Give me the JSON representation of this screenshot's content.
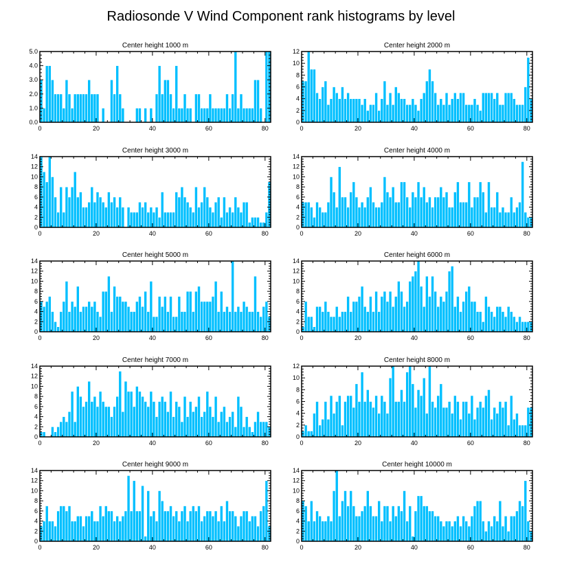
{
  "title": "Radiosonde V Wind Component rank histograms by level",
  "bar_color": "#00bfff",
  "chart_data": [
    {
      "type": "bar",
      "title": "Center height 1000 m",
      "xlim": [
        0,
        82
      ],
      "ylim": [
        0,
        5
      ],
      "xticks": [
        "0",
        "20",
        "40",
        "60",
        "80"
      ],
      "yticks": [
        "0.0",
        "1.0",
        "2.0",
        "3.0",
        "4.0",
        "5.0"
      ],
      "values": [
        3,
        1,
        4,
        4,
        3,
        2,
        2,
        2,
        1,
        3,
        2,
        1,
        2,
        2,
        2,
        2,
        2,
        3,
        2,
        2,
        2,
        0,
        1,
        0,
        0,
        3,
        2,
        4,
        2,
        1,
        0,
        0,
        0,
        0,
        1,
        1,
        0,
        1,
        0,
        1,
        0,
        2,
        4,
        2,
        3,
        3,
        2,
        1,
        4,
        1,
        1,
        2,
        1,
        1,
        0,
        2,
        2,
        1,
        1,
        1,
        2,
        1,
        1,
        1,
        1,
        1,
        2,
        1,
        2,
        5,
        1,
        2,
        1,
        1,
        1,
        1,
        3,
        3,
        1,
        0,
        5,
        5
      ]
    },
    {
      "type": "bar",
      "title": "Center height 2000 m",
      "xlim": [
        0,
        82
      ],
      "ylim": [
        0,
        12
      ],
      "xticks": [
        "0",
        "20",
        "40",
        "60",
        "80"
      ],
      "yticks": [
        "0",
        "2",
        "4",
        "6",
        "8",
        "10",
        "12"
      ],
      "values": [
        7,
        7,
        12,
        9,
        9,
        5,
        4,
        6,
        7,
        3,
        4,
        6,
        5,
        4,
        6,
        4,
        5,
        4,
        4,
        4,
        4,
        3,
        4,
        2,
        3,
        3,
        5,
        2,
        4,
        7,
        3,
        5,
        3,
        6,
        5,
        4,
        4,
        3,
        3,
        4,
        3,
        2,
        4,
        5,
        7,
        9,
        7,
        5,
        3,
        4,
        3,
        5,
        3,
        4,
        5,
        4,
        5,
        5,
        3,
        3,
        3,
        4,
        3,
        2,
        5,
        5,
        5,
        5,
        4,
        5,
        3,
        3,
        5,
        5,
        5,
        4,
        3,
        3,
        3,
        6,
        11,
        4
      ]
    },
    {
      "type": "bar",
      "title": "Center height 3000 m",
      "xlim": [
        0,
        82
      ],
      "ylim": [
        0,
        14
      ],
      "xticks": [
        "0",
        "20",
        "40",
        "60",
        "80"
      ],
      "yticks": [
        "0",
        "2",
        "4",
        "6",
        "8",
        "10",
        "12",
        "14"
      ],
      "values": [
        14,
        11,
        9,
        14,
        10,
        6,
        3,
        8,
        3,
        8,
        6,
        8,
        11,
        6,
        7,
        4,
        4,
        5,
        8,
        5,
        7,
        6,
        5,
        4,
        7,
        5,
        6,
        4,
        6,
        4,
        0,
        4,
        3,
        3,
        3,
        5,
        4,
        5,
        3,
        4,
        3,
        4,
        2,
        7,
        3,
        3,
        3,
        3,
        7,
        6,
        8,
        6,
        5,
        4,
        3,
        8,
        4,
        5,
        8,
        6,
        4,
        3,
        5,
        6,
        2,
        6,
        3,
        4,
        3,
        6,
        4,
        3,
        5,
        5,
        1,
        2,
        2,
        2,
        1,
        1,
        3,
        9
      ]
    },
    {
      "type": "bar",
      "title": "Center height 4000 m",
      "xlim": [
        0,
        82
      ],
      "ylim": [
        0,
        14
      ],
      "xticks": [
        "0",
        "20",
        "40",
        "60",
        "80"
      ],
      "yticks": [
        "0",
        "2",
        "4",
        "6",
        "8",
        "10",
        "12",
        "14"
      ],
      "values": [
        5,
        5,
        5,
        4,
        2,
        5,
        4,
        3,
        3,
        5,
        10,
        7,
        4,
        12,
        6,
        6,
        4,
        7,
        9,
        6,
        4,
        5,
        4,
        6,
        8,
        5,
        4,
        4,
        5,
        10,
        7,
        6,
        8,
        5,
        5,
        9,
        9,
        6,
        4,
        7,
        6,
        9,
        6,
        8,
        5,
        6,
        4,
        6,
        6,
        8,
        6,
        7,
        4,
        4,
        7,
        9,
        5,
        5,
        5,
        9,
        4,
        6,
        6,
        9,
        7,
        3,
        9,
        4,
        4,
        7,
        3,
        4,
        3,
        3,
        6,
        3,
        4,
        5,
        13,
        3,
        2,
        2
      ]
    },
    {
      "type": "bar",
      "title": "Center height 5000 m",
      "xlim": [
        0,
        82
      ],
      "ylim": [
        0,
        14
      ],
      "xticks": [
        "0",
        "20",
        "40",
        "60",
        "80"
      ],
      "yticks": [
        "0",
        "2",
        "4",
        "6",
        "8",
        "10",
        "12",
        "14"
      ],
      "values": [
        6,
        5,
        6,
        7,
        4,
        2,
        1,
        4,
        6,
        10,
        4,
        6,
        5,
        9,
        4,
        5,
        5,
        6,
        5,
        6,
        4,
        3,
        8,
        8,
        11,
        4,
        9,
        7,
        7,
        6,
        6,
        5,
        4,
        4,
        6,
        7,
        5,
        8,
        4,
        10,
        3,
        3,
        7,
        5,
        7,
        4,
        7,
        3,
        3,
        7,
        4,
        4,
        8,
        8,
        4,
        8,
        9,
        6,
        6,
        6,
        6,
        7,
        10,
        4,
        8,
        4,
        5,
        4,
        14,
        4,
        5,
        4,
        6,
        5,
        4,
        4,
        11,
        4,
        3,
        5,
        6,
        3
      ]
    },
    {
      "type": "bar",
      "title": "Center height 6000 m",
      "xlim": [
        0,
        82
      ],
      "ylim": [
        0,
        14
      ],
      "xticks": [
        "0",
        "20",
        "40",
        "60",
        "80"
      ],
      "yticks": [
        "0",
        "2",
        "4",
        "6",
        "8",
        "10",
        "12",
        "14"
      ],
      "values": [
        1,
        6,
        3,
        3,
        1,
        5,
        5,
        4,
        6,
        4,
        3,
        3,
        5,
        3,
        4,
        4,
        7,
        4,
        6,
        6,
        7,
        9,
        5,
        4,
        7,
        4,
        8,
        4,
        7,
        8,
        6,
        8,
        5,
        7,
        10,
        8,
        5,
        6,
        10,
        11,
        12,
        14,
        9,
        5,
        11,
        7,
        11,
        8,
        5,
        7,
        6,
        8,
        12,
        13,
        5,
        7,
        4,
        6,
        8,
        9,
        6,
        6,
        4,
        4,
        2,
        7,
        5,
        4,
        3,
        5,
        5,
        4,
        3,
        5,
        4,
        3,
        2,
        3,
        2,
        2,
        2,
        2
      ]
    },
    {
      "type": "bar",
      "title": "Center height 7000 m",
      "xlim": [
        0,
        82
      ],
      "ylim": [
        0,
        14
      ],
      "xticks": [
        "0",
        "20",
        "40",
        "60",
        "80"
      ],
      "yticks": [
        "0",
        "2",
        "4",
        "6",
        "8",
        "10",
        "12",
        "14"
      ],
      "values": [
        1,
        1,
        0,
        0,
        2,
        1,
        2,
        3,
        4,
        3,
        5,
        9,
        3,
        10,
        8,
        6,
        7,
        11,
        7,
        8,
        6,
        9,
        7,
        6,
        6,
        4,
        6,
        8,
        13,
        5,
        11,
        9,
        9,
        6,
        10,
        9,
        8,
        7,
        6,
        9,
        7,
        4,
        7,
        8,
        7,
        5,
        9,
        4,
        7,
        6,
        3,
        8,
        4,
        7,
        5,
        6,
        8,
        4,
        5,
        9,
        6,
        4,
        8,
        3,
        5,
        6,
        3,
        4,
        5,
        2,
        8,
        6,
        2,
        4,
        2,
        1,
        3,
        5,
        3,
        3,
        3,
        2
      ]
    },
    {
      "type": "bar",
      "title": "Center height 8000 m",
      "xlim": [
        0,
        82
      ],
      "ylim": [
        0,
        12
      ],
      "xticks": [
        "0",
        "20",
        "40",
        "60",
        "80"
      ],
      "yticks": [
        "0",
        "2",
        "4",
        "6",
        "8",
        "10",
        "12"
      ],
      "values": [
        1,
        2,
        1,
        1,
        4,
        6,
        2,
        3,
        6,
        3,
        7,
        4,
        6,
        7,
        2,
        6,
        7,
        7,
        5,
        9,
        6,
        11,
        6,
        8,
        6,
        5,
        7,
        4,
        7,
        6,
        4,
        10,
        12,
        6,
        6,
        8,
        6,
        11,
        12,
        9,
        5,
        8,
        7,
        10,
        4,
        12,
        6,
        5,
        7,
        9,
        5,
        5,
        6,
        4,
        7,
        6,
        3,
        6,
        6,
        4,
        7,
        3,
        5,
        6,
        5,
        7,
        8,
        3,
        5,
        4,
        6,
        5,
        6,
        2,
        7,
        3,
        4,
        2,
        2,
        2,
        5,
        5
      ]
    },
    {
      "type": "bar",
      "title": "Center height 9000 m",
      "xlim": [
        0,
        82
      ],
      "ylim": [
        0,
        14
      ],
      "xticks": [
        "0",
        "20",
        "40",
        "60",
        "80"
      ],
      "yticks": [
        "0",
        "2",
        "4",
        "6",
        "8",
        "10",
        "12",
        "14"
      ],
      "values": [
        3,
        4,
        7,
        4,
        4,
        3,
        6,
        7,
        7,
        6,
        7,
        4,
        4,
        5,
        5,
        3,
        5,
        5,
        6,
        4,
        4,
        7,
        5,
        7,
        6,
        6,
        4,
        5,
        4,
        5,
        6,
        13,
        6,
        12,
        6,
        6,
        11,
        1,
        10,
        5,
        6,
        4,
        10,
        8,
        6,
        6,
        7,
        5,
        6,
        4,
        6,
        7,
        4,
        6,
        7,
        6,
        7,
        4,
        5,
        6,
        6,
        5,
        6,
        4,
        7,
        4,
        8,
        6,
        6,
        5,
        3,
        5,
        6,
        6,
        4,
        5,
        5,
        3,
        6,
        7,
        12,
        3
      ]
    },
    {
      "type": "bar",
      "title": "Center height 10000 m",
      "xlim": [
        0,
        82
      ],
      "ylim": [
        0,
        14
      ],
      "xticks": [
        "0",
        "20",
        "40",
        "60",
        "80"
      ],
      "yticks": [
        "0",
        "2",
        "4",
        "6",
        "8",
        "10",
        "12",
        "14"
      ],
      "values": [
        8,
        7,
        4,
        8,
        4,
        6,
        5,
        4,
        4,
        5,
        4,
        10,
        14,
        5,
        8,
        10,
        7,
        10,
        7,
        5,
        5,
        6,
        7,
        10,
        7,
        5,
        5,
        8,
        4,
        7,
        7,
        4,
        7,
        5,
        7,
        6,
        10,
        4,
        7,
        1,
        6,
        9,
        9,
        7,
        7,
        6,
        6,
        5,
        5,
        4,
        3,
        4,
        4,
        3,
        4,
        5,
        3,
        5,
        4,
        3,
        5,
        7,
        8,
        8,
        4,
        2,
        4,
        3,
        5,
        4,
        8,
        3,
        5,
        2,
        5,
        5,
        6,
        8,
        7,
        12,
        4,
        2
      ]
    }
  ]
}
